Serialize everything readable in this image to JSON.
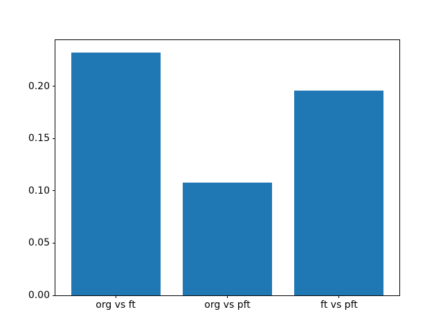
{
  "chart_data": {
    "type": "bar",
    "categories": [
      "org vs ft",
      "org vs pft",
      "ft vs pft"
    ],
    "values": [
      0.232,
      0.108,
      0.196
    ],
    "title": "",
    "xlabel": "",
    "ylabel": "",
    "ylim": [
      0,
      0.244
    ],
    "yticks": [
      0,
      0.05,
      0.1,
      0.15,
      0.2
    ],
    "ytick_labels": [
      "0.00",
      "0.05",
      "0.10",
      "0.15",
      "0.20"
    ],
    "bar_width_fraction": 0.8,
    "bar_color": "#1f77b4",
    "axis_color": "#000000",
    "background_color": "#ffffff",
    "grid": false,
    "legend": "none"
  }
}
